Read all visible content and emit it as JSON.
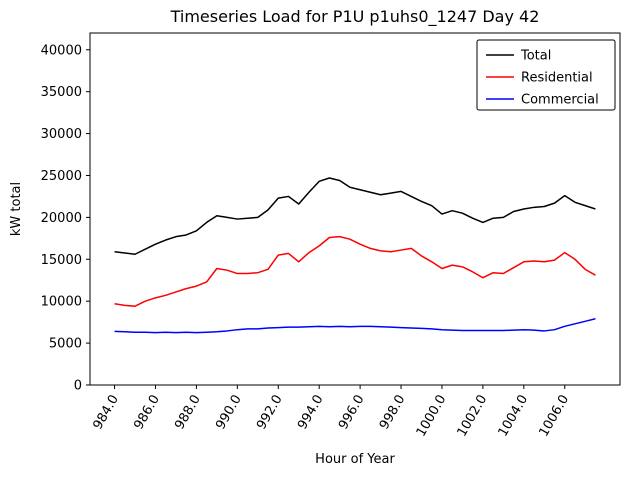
{
  "chart_data": {
    "type": "line",
    "title": "Timeseries Load for P1U p1uhs0_1247  Day 42",
    "xlabel": "Hour of Year",
    "ylabel": "kW total",
    "xlim": [
      982.8,
      1008.7
    ],
    "ylim": [
      0,
      42000
    ],
    "grid": false,
    "xticks": [
      984.0,
      986.0,
      988.0,
      990.0,
      992.0,
      994.0,
      996.0,
      998.0,
      1000.0,
      1002.0,
      1004.0,
      1006.0
    ],
    "yticks": [
      0,
      5000,
      10000,
      15000,
      20000,
      25000,
      30000,
      35000,
      40000
    ],
    "x": [
      984.0,
      984.5,
      985.0,
      985.5,
      986.0,
      986.5,
      987.0,
      987.5,
      988.0,
      988.5,
      989.0,
      989.5,
      990.0,
      990.5,
      991.0,
      991.5,
      992.0,
      992.5,
      993.0,
      993.5,
      994.0,
      994.5,
      995.0,
      995.5,
      996.0,
      996.5,
      997.0,
      997.5,
      998.0,
      998.5,
      999.0,
      999.5,
      1000.0,
      1000.5,
      1001.0,
      1001.5,
      1002.0,
      1002.5,
      1003.0,
      1003.5,
      1004.0,
      1004.5,
      1005.0,
      1005.5,
      1006.0,
      1006.5,
      1007.0,
      1007.5
    ],
    "series": [
      {
        "name": "Total",
        "color": "#000000",
        "values": [
          15900,
          15750,
          15600,
          16200,
          16800,
          17300,
          17700,
          17900,
          18400,
          19400,
          20200,
          20000,
          19800,
          19900,
          20000,
          20900,
          22300,
          22500,
          21600,
          23000,
          24300,
          24700,
          24400,
          23600,
          23300,
          23000,
          22700,
          22900,
          23100,
          22500,
          21900,
          21400,
          20400,
          20800,
          20500,
          19900,
          19400,
          19900,
          20000,
          20700,
          21000,
          21200,
          21300,
          21700,
          22600,
          21800,
          21400,
          21000
        ]
      },
      {
        "name": "Residential",
        "color": "#ff0000",
        "values": [
          9700,
          9500,
          9400,
          10000,
          10400,
          10700,
          11100,
          11500,
          11800,
          12300,
          13900,
          13700,
          13300,
          13300,
          13400,
          13800,
          15500,
          15700,
          14700,
          15800,
          16600,
          17600,
          17700,
          17400,
          16800,
          16300,
          16000,
          15900,
          16100,
          16300,
          15400,
          14700,
          13900,
          14300,
          14100,
          13500,
          12800,
          13400,
          13300,
          14000,
          14700,
          14800,
          14700,
          14900,
          15800,
          15000,
          13800,
          13100
        ]
      },
      {
        "name": "Commercial",
        "color": "#0000ff",
        "values": [
          6400,
          6350,
          6300,
          6300,
          6250,
          6300,
          6250,
          6300,
          6250,
          6300,
          6350,
          6450,
          6600,
          6700,
          6700,
          6800,
          6850,
          6900,
          6900,
          6950,
          7000,
          6950,
          7000,
          6950,
          7000,
          7000,
          6950,
          6900,
          6850,
          6800,
          6750,
          6700,
          6600,
          6550,
          6500,
          6500,
          6500,
          6500,
          6500,
          6550,
          6600,
          6550,
          6450,
          6600,
          7000,
          7300,
          7600,
          7900
        ]
      }
    ],
    "legend": {
      "position": "upper right",
      "entries": [
        {
          "label": "Total",
          "color": "#000000"
        },
        {
          "label": "Residential",
          "color": "#ff0000"
        },
        {
          "label": "Commercial",
          "color": "#0000ff"
        }
      ]
    }
  }
}
